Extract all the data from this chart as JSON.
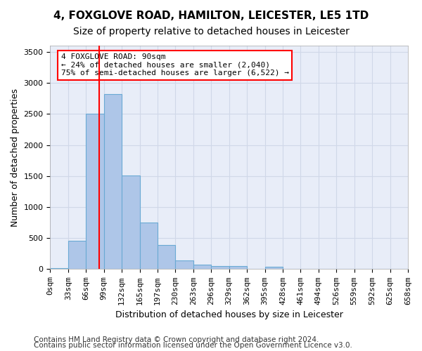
{
  "title_line1": "4, FOXGLOVE ROAD, HAMILTON, LEICESTER, LE5 1TD",
  "title_line2": "Size of property relative to detached houses in Leicester",
  "xlabel": "Distribution of detached houses by size in Leicester",
  "ylabel": "Number of detached properties",
  "annotation_line1": "4 FOXGLOVE ROAD: 90sqm",
  "annotation_line2": "← 24% of detached houses are smaller (2,040)",
  "annotation_line3": "75% of semi-detached houses are larger (6,522) →",
  "footnote1": "Contains HM Land Registry data © Crown copyright and database right 2024.",
  "footnote2": "Contains public sector information licensed under the Open Government Licence v3.0.",
  "bin_labels": [
    "0sqm",
    "33sqm",
    "66sqm",
    "99sqm",
    "132sqm",
    "165sqm",
    "197sqm",
    "230sqm",
    "263sqm",
    "296sqm",
    "329sqm",
    "362sqm",
    "395sqm",
    "428sqm",
    "461sqm",
    "494sqm",
    "526sqm",
    "559sqm",
    "592sqm",
    "625sqm",
    "658sqm"
  ],
  "bar_values": [
    20,
    460,
    2500,
    2820,
    1510,
    750,
    390,
    140,
    70,
    50,
    50,
    0,
    40,
    0,
    0,
    0,
    0,
    0,
    0,
    0
  ],
  "bar_color": "#aec6e8",
  "bar_edge_color": "#6aaad4",
  "grid_color": "#d0d8e8",
  "background_color": "#e8edf8",
  "vline_x": 2.73,
  "vline_color": "red",
  "ylim": [
    0,
    3600
  ],
  "yticks": [
    0,
    500,
    1000,
    1500,
    2000,
    2500,
    3000,
    3500
  ],
  "title_fontsize": 11,
  "subtitle_fontsize": 10,
  "label_fontsize": 9,
  "tick_fontsize": 8,
  "footnote_fontsize": 7.5
}
